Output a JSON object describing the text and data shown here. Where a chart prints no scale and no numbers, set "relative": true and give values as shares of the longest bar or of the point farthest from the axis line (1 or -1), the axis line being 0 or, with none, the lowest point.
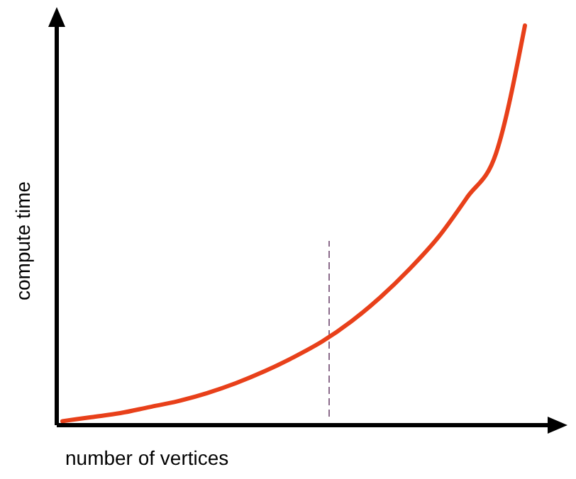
{
  "chart_data": {
    "type": "line",
    "relative": true,
    "xlabel": "number of vertices",
    "ylabel": "compute time",
    "categories": [
      null,
      null,
      null,
      null,
      null,
      null,
      null,
      null,
      null,
      null,
      null,
      null,
      null,
      null,
      null,
      null,
      null
    ],
    "series": [
      {
        "color": "#e8401a",
        "values": [
          0.01,
          0.02,
          0.03,
          0.045,
          0.06,
          0.08,
          0.105,
          0.135,
          0.17,
          0.21,
          0.26,
          0.32,
          0.39,
          0.47,
          0.57,
          0.68,
          1
        ]
      }
    ],
    "marker": "none",
    "grid": false
  }
}
